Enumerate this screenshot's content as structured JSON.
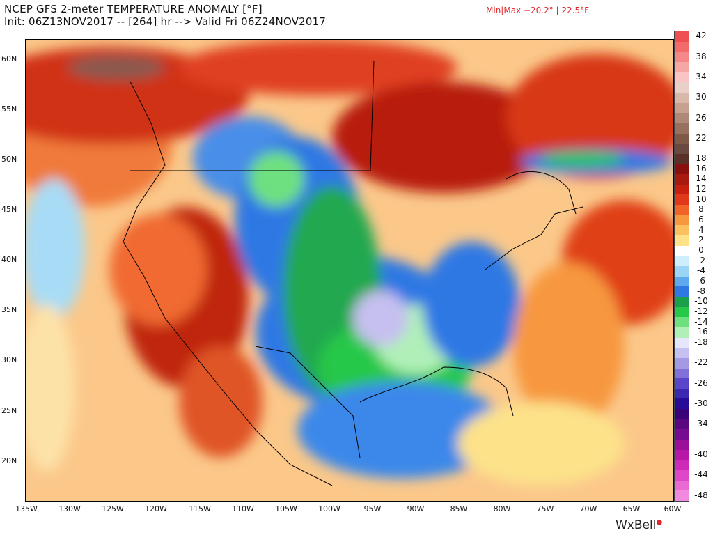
{
  "header": {
    "title": "NCEP GFS 2-meter TEMPERATURE ANOMALY [°F]",
    "subtitle": "Init: 06Z13NOV2017 -- [264] hr --> Valid Fri 06Z24NOV2017",
    "minmax": "Min|Max −20.2° | 22.5°F"
  },
  "map": {
    "lat_labels": [
      "60N",
      "55N",
      "50N",
      "45N",
      "40N",
      "35N",
      "30N",
      "25N",
      "20N"
    ],
    "lon_labels": [
      "135W",
      "130W",
      "125W",
      "120W",
      "115W",
      "110W",
      "105W",
      "100W",
      "95W",
      "90W",
      "85W",
      "80W",
      "75W",
      "70W",
      "65W",
      "60W"
    ]
  },
  "legend": {
    "levels": [
      "42",
      "40",
      "38",
      "36",
      "34",
      "32",
      "30",
      "28",
      "26",
      "24",
      "22",
      "20",
      "18",
      "16",
      "14",
      "12",
      "10",
      "8",
      "6",
      "4",
      "2",
      "0",
      "-2",
      "-4",
      "-6",
      "-8",
      "-10",
      "-12",
      "-14",
      "-16",
      "-18",
      "-20",
      "-22",
      "-24",
      "-26",
      "-28",
      "-30",
      "-32",
      "-34",
      "-36",
      "-38",
      "-40",
      "-42",
      "-44",
      "-46",
      "-48"
    ],
    "labeled": [
      "42",
      "38",
      "34",
      "30",
      "26",
      "22",
      "18",
      "16",
      "14",
      "12",
      "10",
      "8",
      "6",
      "4",
      "2",
      "0",
      "-2",
      "-4",
      "-6",
      "-8",
      "-10",
      "-12",
      "-14",
      "-16",
      "-18",
      "-22",
      "-26",
      "-30",
      "-34",
      "-40",
      "-44",
      "-48"
    ],
    "colors": [
      "#ee4f50",
      "#f26a6a",
      "#f48888",
      "#f7a6a6",
      "#fac4c4",
      "#e8d0c8",
      "#d8b8a8",
      "#c8a090",
      "#b08878",
      "#987060",
      "#805848",
      "#6a4a40",
      "#5a3028",
      "#8a1010",
      "#a81a10",
      "#c82010",
      "#e03818",
      "#f06428",
      "#f79840",
      "#fbc060",
      "#fde28a",
      "#ffffff",
      "#cfeefb",
      "#9cd4f6",
      "#5ea8ee",
      "#2f78e4",
      "#1aa04a",
      "#26c848",
      "#6ee080",
      "#b0f0b8",
      "#e6e6fa",
      "#c6c0f0",
      "#a49ae4",
      "#8070d8",
      "#5a46c8",
      "#3a28b0",
      "#280c98",
      "#3a0478",
      "#5a0880",
      "#780c90",
      "#9a109a",
      "#b818a8",
      "#d028b8",
      "#e046c8",
      "#ea6ad4",
      "#f08ade"
    ]
  },
  "brand": {
    "name": "WxBell"
  }
}
